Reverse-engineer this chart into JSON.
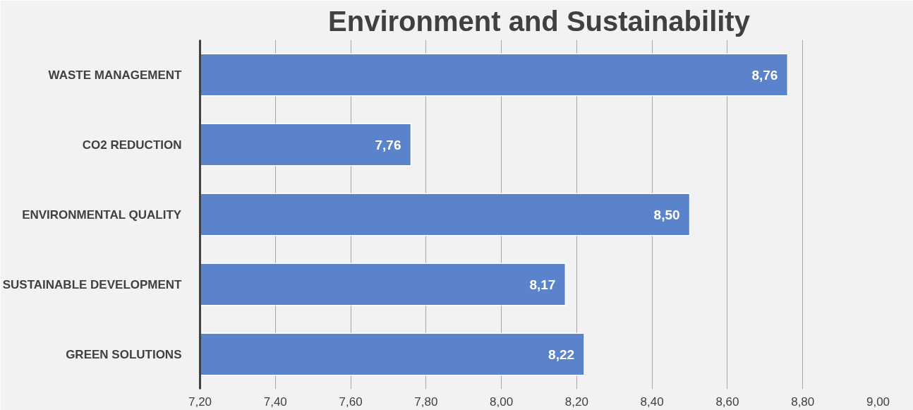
{
  "chart_data": {
    "type": "bar",
    "orientation": "horizontal",
    "title": "Environment and Sustainability",
    "categories": [
      "WASTE MANAGEMENT",
      "CO2 REDUCTION",
      "ENVIRONMENTAL QUALITY",
      "SUSTAINABLE DEVELOPMENT",
      "GREEN SOLUTIONS"
    ],
    "values": [
      8.76,
      7.76,
      8.5,
      8.17,
      8.22
    ],
    "value_labels": [
      "8,76",
      "7,76",
      "8,50",
      "8,17",
      "8,22"
    ],
    "color": "#5b83cc",
    "xlim": [
      7.2,
      9.0
    ],
    "xticks": [
      {
        "value": 7.2,
        "label": "7,20"
      },
      {
        "value": 7.4,
        "label": "7,40"
      },
      {
        "value": 7.6,
        "label": "7,60"
      },
      {
        "value": 7.8,
        "label": "7,80"
      },
      {
        "value": 8.0,
        "label": "8,00"
      },
      {
        "value": 8.2,
        "label": "8,20"
      },
      {
        "value": 8.4,
        "label": "8,40"
      },
      {
        "value": 8.6,
        "label": "8,60"
      },
      {
        "value": 8.8,
        "label": "8,80"
      },
      {
        "value": 9.0,
        "label": "9,00"
      }
    ],
    "grid": "x"
  }
}
